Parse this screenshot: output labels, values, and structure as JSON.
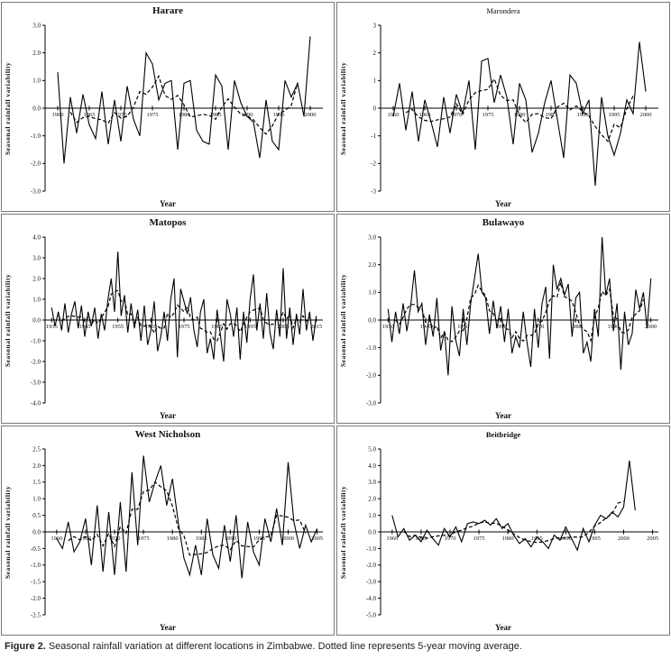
{
  "figure": {
    "caption_label": "Figure 2.",
    "caption_text": "Seasonal rainfall variation at different locations in Zimbabwe. Dotted line represents 5-year moving average."
  },
  "chart_data": [
    {
      "type": "line",
      "title": "Harare",
      "title_class": "large",
      "xlabel": "Year",
      "ylabel": "Seasonal rainfall variability",
      "ylim": [
        -3,
        3
      ],
      "ytick_step": 1,
      "ytick_decimals": 1,
      "xlim": [
        1958,
        2002
      ],
      "xticks": [
        1960,
        1965,
        1970,
        1975,
        1980,
        1985,
        1990,
        1995,
        2000
      ],
      "x_start": 1960,
      "moving_average_window": 5,
      "line_color": "#000000",
      "values": [
        1.3,
        -2.0,
        0.4,
        -0.9,
        0.5,
        -0.6,
        -1.1,
        0.6,
        -1.3,
        0.3,
        -1.2,
        0.8,
        -0.4,
        -1.0,
        2.0,
        1.6,
        0.3,
        0.9,
        1.0,
        -1.5,
        0.9,
        1.0,
        -0.8,
        -1.2,
        -1.3,
        1.2,
        0.8,
        -1.5,
        1.0,
        0.2,
        -0.3,
        -0.5,
        -1.8,
        0.3,
        -1.2,
        -1.5,
        1.0,
        0.4,
        0.9,
        -0.3,
        2.6
      ]
    },
    {
      "type": "line",
      "title": "Marondera",
      "title_class": "small",
      "xlabel": "Year",
      "ylabel": "Seasonal rainfall variability",
      "ylim": [
        -3,
        3
      ],
      "ytick_step": 1,
      "ytick_decimals": 0,
      "xlim": [
        1958,
        2002
      ],
      "xticks": [
        1960,
        1965,
        1970,
        1975,
        1980,
        1985,
        1990,
        1995,
        2000
      ],
      "x_start": 1960,
      "moving_average_window": 5,
      "line_color": "#000000",
      "values": [
        -0.3,
        0.9,
        -0.8,
        0.6,
        -1.2,
        0.3,
        -0.5,
        -1.4,
        0.4,
        -0.9,
        0.5,
        -0.2,
        1.0,
        -1.5,
        1.7,
        1.8,
        0.2,
        1.2,
        0.4,
        -1.3,
        0.9,
        0.3,
        -1.6,
        -0.9,
        0.2,
        1.0,
        -0.4,
        -1.8,
        1.2,
        0.9,
        -0.2,
        0.3,
        -2.8,
        0.4,
        -1.0,
        -1.7,
        -0.9,
        0.3,
        -0.2,
        2.4,
        0.6
      ]
    },
    {
      "type": "line",
      "title": "Matopos",
      "title_class": "large",
      "xlabel": "Year",
      "ylabel": "Seasonal rainfall variability",
      "ylim": [
        -4,
        4
      ],
      "ytick_step": 1,
      "ytick_decimals": 1,
      "xlim": [
        1933,
        2017
      ],
      "xticks": [
        1935,
        1945,
        1955,
        1965,
        1975,
        1985,
        1995,
        2005,
        2015
      ],
      "x_start": 1935,
      "moving_average_window": 5,
      "line_color": "#000000",
      "values": [
        0.6,
        -0.3,
        0.4,
        -0.5,
        0.8,
        -0.6,
        0.3,
        0.9,
        -0.4,
        0.7,
        -0.8,
        0.4,
        -0.3,
        0.6,
        -0.9,
        0.3,
        -0.5,
        1.0,
        2.0,
        0.4,
        3.3,
        0.2,
        1.2,
        -0.6,
        0.8,
        -0.4,
        0.5,
        -1.0,
        0.7,
        -1.2,
        -0.5,
        0.9,
        -1.5,
        -0.8,
        0.4,
        -1.0,
        1.0,
        2.0,
        -1.8,
        1.5,
        0.9,
        0.3,
        1.1,
        -0.5,
        -1.3,
        0.4,
        1.0,
        -1.6,
        -0.9,
        -1.9,
        0.5,
        -0.7,
        -2.0,
        1.0,
        0.3,
        -0.8,
        0.6,
        -1.9,
        0.4,
        -1.1,
        1.0,
        2.2,
        -0.5,
        0.8,
        -0.9,
        1.3,
        -0.6,
        -1.4,
        0.5,
        -0.8,
        2.5,
        -0.9,
        0.6,
        -1.2,
        0.3,
        -0.7,
        1.5,
        -0.5,
        0.4,
        -1.0,
        0.2
      ]
    },
    {
      "type": "line",
      "title": "Bulawayo",
      "title_class": "large",
      "xlabel": "Year",
      "ylabel": "Seasonal rainfall variability",
      "ylim": [
        -3,
        3
      ],
      "ytick_step": 1,
      "ytick_decimals": 1,
      "xlim": [
        1928,
        2002
      ],
      "xticks": [
        1930,
        1940,
        1950,
        1960,
        1970,
        1980,
        1990,
        2000
      ],
      "x_start": 1930,
      "moving_average_window": 5,
      "line_color": "#000000",
      "values": [
        0.4,
        -0.8,
        0.3,
        -0.5,
        0.6,
        -0.4,
        0.5,
        1.8,
        0.3,
        0.6,
        -0.9,
        0.2,
        -0.6,
        0.8,
        -1.1,
        -0.4,
        -2.0,
        0.5,
        -0.7,
        -1.3,
        0.4,
        -0.9,
        0.6,
        1.5,
        2.4,
        1.0,
        0.8,
        -0.5,
        0.7,
        -0.3,
        0.5,
        -0.8,
        0.4,
        -1.2,
        -0.6,
        -1.0,
        0.3,
        -0.8,
        -1.7,
        0.4,
        -1.0,
        0.6,
        1.2,
        -1.4,
        2.0,
        1.1,
        1.5,
        0.9,
        1.3,
        -0.6,
        0.8,
        1.0,
        -1.2,
        -0.8,
        -1.5,
        0.4,
        -0.6,
        3.0,
        0.9,
        1.5,
        -0.4,
        0.6,
        -1.8,
        0.3,
        -0.9,
        -0.5,
        1.1,
        0.4,
        1.0,
        -0.3,
        1.5
      ]
    },
    {
      "type": "line",
      "title": "West Nicholson",
      "title_class": "large",
      "xlabel": "Year",
      "ylabel": "Seasonal  rainfall  variability",
      "ylim": [
        -2.5,
        2.5
      ],
      "ytick_step": 0.5,
      "ytick_decimals": 1,
      "xlim": [
        1958,
        2006
      ],
      "xticks": [
        1960,
        1965,
        1970,
        1975,
        1980,
        1985,
        1990,
        1995,
        2000,
        2005
      ],
      "x_start": 1960,
      "moving_average_window": 5,
      "line_color": "#000000",
      "values": [
        -0.2,
        -0.5,
        0.3,
        -0.6,
        -0.3,
        0.4,
        -1.0,
        0.8,
        -1.2,
        0.6,
        -1.3,
        0.9,
        -1.2,
        1.8,
        -0.4,
        2.3,
        0.9,
        1.5,
        2.0,
        0.8,
        1.6,
        0.3,
        -0.8,
        -1.3,
        -0.4,
        -1.3,
        0.4,
        -0.7,
        -1.1,
        0.2,
        -0.9,
        0.5,
        -1.4,
        0.3,
        -0.6,
        -1.0,
        0.4,
        -0.3,
        0.7,
        -0.4,
        2.1,
        0.3,
        -0.5,
        0.2,
        -0.3,
        0.1
      ]
    },
    {
      "type": "line",
      "title": "Beitbridge",
      "title_class": "small-bold",
      "xlabel": "Year",
      "ylabel": "Seasonal rainfall  variability",
      "ylim": [
        -5,
        5
      ],
      "ytick_step": 1,
      "ytick_decimals": 1,
      "xlim": [
        1958,
        2006
      ],
      "xticks": [
        1960,
        1965,
        1970,
        1975,
        1980,
        1985,
        1990,
        1995,
        2000,
        2005
      ],
      "x_start": 1960,
      "moving_average_window": 5,
      "line_color": "#000000",
      "values": [
        1.0,
        -0.3,
        0.2,
        -0.5,
        -0.2,
        -0.6,
        0.1,
        -0.4,
        -0.8,
        0.2,
        -0.3,
        0.3,
        -0.6,
        0.5,
        0.6,
        0.5,
        0.7,
        0.4,
        0.8,
        0.2,
        0.5,
        -0.2,
        -0.7,
        -0.4,
        -0.9,
        -0.3,
        -0.6,
        -1.0,
        -0.2,
        -0.5,
        0.3,
        -0.4,
        -1.1,
        0.2,
        -0.6,
        0.4,
        1.0,
        0.8,
        1.2,
        0.9,
        1.5,
        4.3,
        1.3
      ]
    }
  ]
}
